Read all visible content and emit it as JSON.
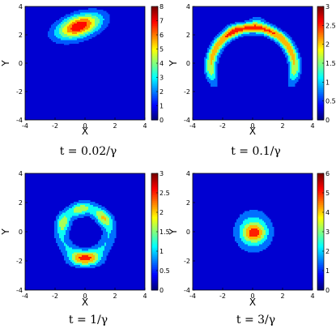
{
  "chart_data": [
    {
      "type": "heatmap",
      "caption": "t = 0.02/γ",
      "xlabel": "X",
      "ylabel": "Y",
      "xlim": [
        -4,
        4
      ],
      "ylim": [
        -4,
        4
      ],
      "x_ticks": [
        "-4",
        "-2",
        "0",
        "2",
        "4"
      ],
      "y_ticks": [
        "-4",
        "-2",
        "0",
        "2",
        "4"
      ],
      "colorbar": {
        "range": [
          0,
          8
        ],
        "ticks": [
          "0",
          "1",
          "2",
          "3",
          "4",
          "5",
          "6",
          "7",
          "8"
        ]
      },
      "blobs": [
        {
          "cx": -0.4,
          "cy": 2.6,
          "sx": 1.1,
          "sy": 0.55,
          "rot": 0.35,
          "amp": 7.8
        }
      ],
      "levels": 7
    },
    {
      "type": "heatmap",
      "caption": "t = 0.1/γ",
      "xlabel": "X",
      "ylabel": "Y",
      "xlim": [
        -4,
        4
      ],
      "ylim": [
        -4,
        4
      ],
      "x_ticks": [
        "-4",
        "-2",
        "0",
        "2",
        "4"
      ],
      "y_ticks": [
        "-4",
        "-2",
        "0",
        "2",
        "4"
      ],
      "colorbar": {
        "range": [
          0,
          3
        ],
        "ticks": [
          "0",
          "0.5",
          "1",
          "1.5",
          "2",
          "2.5",
          "3"
        ]
      },
      "arc": {
        "cx": 0.0,
        "cy": -0.3,
        "r": 2.8,
        "width": 0.55,
        "ang_from": -40,
        "ang_to": 220,
        "amp": 2.6
      },
      "blobs": [
        {
          "cx": 0.3,
          "cy": 3.0,
          "sx": 0.4,
          "sy": 0.3,
          "rot": 0,
          "amp": 0.6
        },
        {
          "cx": -1.4,
          "cy": 2.5,
          "sx": 0.4,
          "sy": 0.3,
          "rot": 0,
          "amp": 0.5
        }
      ],
      "levels": 6
    },
    {
      "type": "heatmap",
      "caption": "t = 1/γ",
      "xlabel": "X",
      "ylabel": "Y",
      "xlim": [
        -4,
        4
      ],
      "ylim": [
        -4,
        4
      ],
      "x_ticks": [
        "-4",
        "-2",
        "0",
        "2",
        "4"
      ],
      "y_ticks": [
        "-4",
        "-2",
        "0",
        "2",
        "4"
      ],
      "colorbar": {
        "range": [
          0,
          3
        ],
        "ticks": [
          "0",
          "0.5",
          "1",
          "1.5",
          "2",
          "2.5",
          "3"
        ]
      },
      "ring": {
        "cx": 0.0,
        "cy": 0.0,
        "r": 1.6,
        "width": 0.75,
        "amp": 1.0
      },
      "blobs": [
        {
          "cx": 0.0,
          "cy": -1.9,
          "sx": 0.75,
          "sy": 0.35,
          "rot": 0,
          "amp": 2.0
        },
        {
          "cx": 1.2,
          "cy": 0.95,
          "sx": 0.5,
          "sy": 0.3,
          "rot": -0.7,
          "amp": 1.1
        },
        {
          "cx": -0.3,
          "cy": 1.55,
          "sx": 0.45,
          "sy": 0.3,
          "rot": 0.3,
          "amp": 0.9
        },
        {
          "cx": -1.45,
          "cy": 0.6,
          "sx": 0.3,
          "sy": 0.45,
          "rot": 0,
          "amp": 0.9
        }
      ],
      "levels": 6
    },
    {
      "type": "heatmap",
      "caption": "t = 3/γ",
      "xlabel": "X",
      "ylabel": "Y",
      "xlim": [
        -4,
        4
      ],
      "ylim": [
        -4,
        4
      ],
      "x_ticks": [
        "-4",
        "-2",
        "0",
        "2",
        "4"
      ],
      "y_ticks": [
        "-4",
        "-2",
        "0",
        "2",
        "4"
      ],
      "colorbar": {
        "range": [
          0,
          6
        ],
        "ticks": [
          "0",
          "1",
          "2",
          "3",
          "4",
          "5",
          "6"
        ]
      },
      "blobs": [
        {
          "cx": 0.05,
          "cy": 0.05,
          "sx": 0.85,
          "sy": 0.95,
          "rot": 0,
          "amp": 3.2
        },
        {
          "cx": 0.1,
          "cy": -0.1,
          "sx": 0.5,
          "sy": 0.4,
          "rot": 0,
          "amp": 2.6
        }
      ],
      "levels": 6
    }
  ]
}
